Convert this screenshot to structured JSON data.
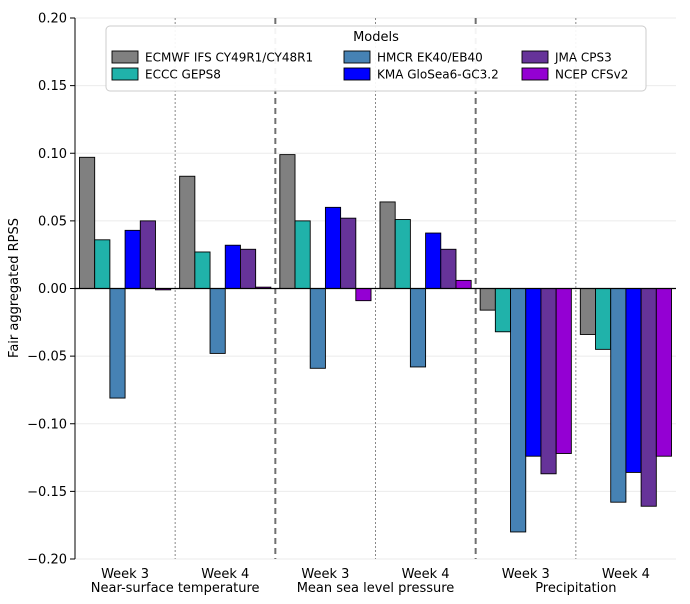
{
  "chart_data": {
    "type": "bar",
    "ylabel": "Fair aggregated RPSS",
    "ylim": [
      -0.2,
      0.2
    ],
    "yticks": [
      -0.2,
      -0.15,
      -0.1,
      -0.05,
      0.0,
      0.05,
      0.1,
      0.15,
      0.2
    ],
    "ytick_labels": [
      "−0.20",
      "−0.15",
      "−0.10",
      "−0.05",
      "0.00",
      "0.05",
      "0.10",
      "0.15",
      "0.20"
    ],
    "grid": "horizontal",
    "legend": {
      "title": "Models",
      "placement": "top-center",
      "ncol": 3
    },
    "variables": [
      "Near-surface temperature",
      "Mean sea level pressure",
      "Precipitation"
    ],
    "categories": [
      "Week 3",
      "Week 4",
      "Week 3",
      "Week 4",
      "Week 3",
      "Week 4"
    ],
    "series": [
      {
        "name": "ECMWF IFS CY49R1/CY48R1",
        "color": "#808080",
        "values": [
          0.097,
          0.083,
          0.099,
          0.064,
          -0.016,
          -0.034
        ]
      },
      {
        "name": "ECCC GEPS8",
        "color": "#20b2aa",
        "values": [
          0.036,
          0.027,
          0.05,
          0.051,
          -0.032,
          -0.045
        ]
      },
      {
        "name": "HMCR EK40/EB40",
        "color": "#4682b4",
        "values": [
          -0.081,
          -0.048,
          -0.059,
          -0.058,
          -0.18,
          -0.158
        ]
      },
      {
        "name": "KMA GloSea6-GC3.2",
        "color": "#0000ff",
        "values": [
          0.043,
          0.032,
          0.06,
          0.041,
          -0.124,
          -0.136
        ]
      },
      {
        "name": "JMA CPS3",
        "color": "#663399",
        "values": [
          0.05,
          0.029,
          0.052,
          0.029,
          -0.137,
          -0.161
        ]
      },
      {
        "name": "NCEP CFSv2",
        "color": "#9400d3",
        "values": [
          -0.001,
          0.001,
          -0.009,
          0.006,
          -0.122,
          -0.124
        ]
      }
    ]
  }
}
